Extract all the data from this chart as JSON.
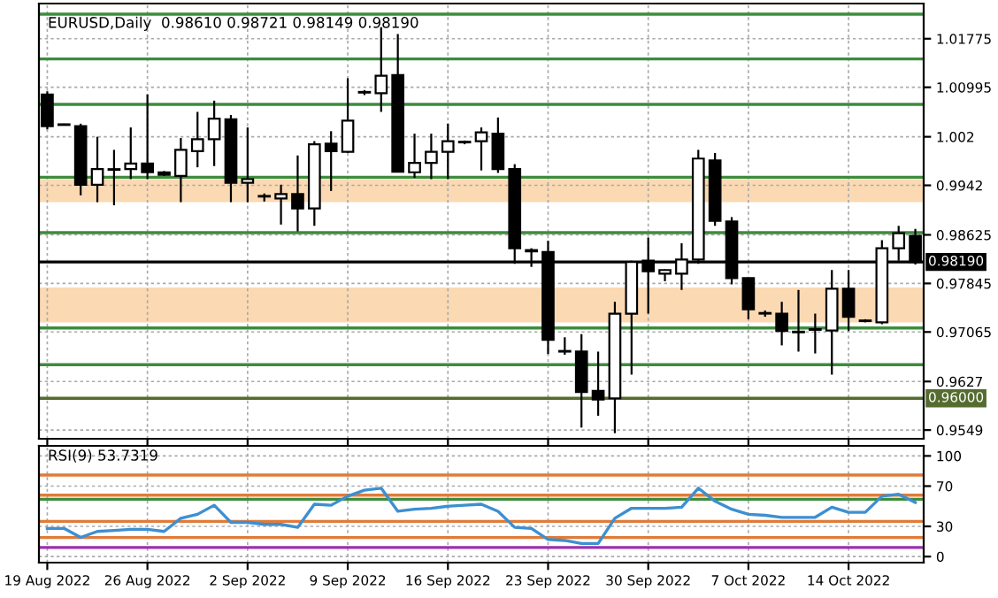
{
  "chart_data": [
    {
      "type": "candlestick",
      "title": "EURUSD,Daily  0.98610 0.98721 0.98149 0.98190",
      "categories": [
        null,
        null,
        null,
        null,
        null,
        null,
        null,
        null,
        null,
        null,
        null,
        null,
        null,
        null,
        null,
        null,
        null,
        null,
        null,
        null,
        null,
        null,
        null,
        null,
        null,
        null,
        null,
        null,
        null,
        null,
        null,
        null,
        null,
        null,
        null,
        null,
        null,
        null,
        null,
        null,
        null,
        null,
        null,
        null,
        null,
        null,
        null,
        null,
        null,
        null,
        null,
        null,
        null
      ],
      "color": "#000000",
      "ohlc": [
        [
          1.0088,
          1.0093,
          1.0032,
          1.0037
        ],
        [
          1.004,
          1.0041,
          1.0038,
          1.0039
        ],
        [
          1.0037,
          1.0041,
          0.9926,
          0.9943
        ],
        [
          0.9943,
          1.002,
          0.9915,
          0.9968
        ],
        [
          0.9968,
          0.9999,
          0.991,
          0.9967
        ],
        [
          0.9968,
          1.0035,
          0.9952,
          0.9977
        ],
        [
          0.9977,
          1.0088,
          0.9952,
          0.9963
        ],
        [
          0.9963,
          0.9965,
          0.9957,
          0.9959
        ],
        [
          0.9957,
          1.0018,
          0.9915,
          0.9999
        ],
        [
          0.9997,
          1.006,
          0.9971,
          1.0016
        ],
        [
          1.0016,
          1.0078,
          0.9973,
          1.0049
        ],
        [
          1.0048,
          1.0055,
          0.9915,
          0.9946
        ],
        [
          0.9946,
          1.0035,
          0.9915,
          0.9952
        ],
        [
          0.9925,
          0.9929,
          0.9916,
          0.9924
        ],
        [
          0.9921,
          0.9943,
          0.9879,
          0.9928
        ],
        [
          0.9928,
          0.999,
          0.9868,
          0.9905
        ],
        [
          0.9905,
          1.0013,
          0.9877,
          1.0008
        ],
        [
          1.0009,
          1.0029,
          0.9933,
          0.9997
        ],
        [
          0.9996,
          1.0114,
          0.9994,
          1.0046
        ],
        [
          1.0091,
          1.0095,
          1.0087,
          1.0092
        ],
        [
          1.009,
          1.0196,
          1.006,
          1.0118
        ],
        [
          1.0119,
          1.0185,
          0.9963,
          0.9964
        ],
        [
          0.9963,
          1.0025,
          0.9954,
          0.9978
        ],
        [
          0.9978,
          1.0025,
          0.9952,
          0.9996
        ],
        [
          0.9996,
          1.0041,
          0.9952,
          1.0013
        ],
        [
          1.0012,
          1.0014,
          1.0008,
          1.0011
        ],
        [
          1.0013,
          1.0035,
          0.9966,
          1.0027
        ],
        [
          1.0025,
          1.0051,
          0.9962,
          0.9968
        ],
        [
          0.9968,
          0.9976,
          0.9816,
          0.9841
        ],
        [
          0.9838,
          0.9841,
          0.9811,
          0.9836
        ],
        [
          0.9835,
          0.9853,
          0.9671,
          0.9694
        ],
        [
          0.9676,
          0.9698,
          0.967,
          0.9675
        ],
        [
          0.9675,
          0.9703,
          0.9553,
          0.961
        ],
        [
          0.9612,
          0.9675,
          0.9572,
          0.9598
        ],
        [
          0.96,
          0.9755,
          0.9544,
          0.9736
        ],
        [
          0.9736,
          0.9821,
          0.9638,
          0.9819
        ],
        [
          0.9821,
          0.9858,
          0.9736,
          0.9804
        ],
        [
          0.98,
          0.9807,
          0.9788,
          0.9806
        ],
        [
          0.98,
          0.9849,
          0.9774,
          0.9823
        ],
        [
          0.9823,
          0.9999,
          0.9816,
          0.9985
        ],
        [
          0.9982,
          0.9994,
          0.9877,
          0.9885
        ],
        [
          0.9884,
          0.9891,
          0.9783,
          0.9793
        ],
        [
          0.9793,
          0.9793,
          0.9727,
          0.9743
        ],
        [
          0.9736,
          0.9741,
          0.9731,
          0.9737
        ],
        [
          0.9736,
          0.9755,
          0.9685,
          0.9708
        ],
        [
          0.9707,
          0.9774,
          0.9675,
          0.9706
        ],
        [
          0.971,
          0.9736,
          0.9672,
          0.9711
        ],
        [
          0.9709,
          0.9806,
          0.9638,
          0.9776
        ],
        [
          0.9776,
          0.9806,
          0.9708,
          0.9731
        ],
        [
          0.9725,
          0.9727,
          0.9722,
          0.9724
        ],
        [
          0.9722,
          0.9854,
          0.9719,
          0.9841
        ],
        [
          0.9841,
          0.9877,
          0.9821,
          0.9865
        ],
        [
          0.9861,
          0.98721,
          0.98149,
          0.9819
        ]
      ],
      "ylim": [
        0.9535,
        1.0234
      ],
      "yticks": [
        0.9549,
        0.9627,
        0.97065,
        0.97845,
        0.98625,
        0.9942,
        1.002,
        1.00995,
        1.01775
      ],
      "ref_lines": [
        {
          "axis": "y",
          "value": 1.0217,
          "color": "#3c8c3c"
        },
        {
          "axis": "y",
          "value": 1.0145,
          "color": "#3c8c3c"
        },
        {
          "axis": "y",
          "value": 1.0072,
          "color": "#3c8c3c"
        },
        {
          "axis": "y",
          "value": 0.9955,
          "color": "#3c8c3c"
        },
        {
          "axis": "y",
          "value": 0.9866,
          "color": "#3c8c3c"
        },
        {
          "axis": "y",
          "value": 0.9713,
          "color": "#3c8c3c"
        },
        {
          "axis": "y",
          "value": 0.9654,
          "color": "#3c8c3c"
        },
        {
          "axis": "y",
          "value": 0.9819,
          "label": "0.98190",
          "color": "#000000"
        },
        {
          "axis": "y",
          "value": 0.96,
          "label": "0.96000",
          "color": "#556b2f"
        }
      ],
      "bands": [
        {
          "axis": "y",
          "from": 0.9915,
          "to": 0.9952,
          "color": "#fbd9b3"
        },
        {
          "axis": "y",
          "from": 0.9722,
          "to": 0.9778,
          "color": "#fbd9b3"
        }
      ],
      "grid": true,
      "tick_labels": "y"
    },
    {
      "type": "line",
      "title": "RSI(9) 53.7319",
      "categories": [
        "19 Aug 2022",
        null,
        null,
        null,
        null,
        null,
        "26 Aug 2022",
        null,
        null,
        null,
        null,
        null,
        "2 Sep 2022",
        null,
        null,
        null,
        null,
        null,
        "9 Sep 2022",
        null,
        null,
        null,
        null,
        null,
        "16 Sep 2022",
        null,
        null,
        null,
        null,
        null,
        "23 Sep 2022",
        null,
        null,
        null,
        null,
        null,
        "30 Sep 2022",
        null,
        null,
        null,
        null,
        null,
        "7 Oct 2022",
        null,
        null,
        null,
        null,
        null,
        "14 Oct 2022",
        null,
        null,
        null,
        null
      ],
      "series": [
        {
          "color": "#3d8fd1",
          "values": [
            28,
            28,
            19,
            25,
            26,
            27,
            27,
            25,
            38,
            42,
            51,
            34,
            34,
            32,
            32,
            29,
            52,
            51,
            60,
            66,
            68,
            45,
            47,
            48,
            50,
            51,
            52,
            45,
            29,
            28,
            17,
            16,
            13,
            13,
            38,
            48,
            48,
            48,
            49,
            68,
            55,
            47,
            42,
            41,
            39,
            39,
            39,
            49,
            44,
            44,
            60,
            62,
            53.7
          ]
        }
      ],
      "ylim": [
        -6,
        110
      ],
      "yticks": [
        0,
        30,
        70,
        100
      ],
      "ref_lines": [
        {
          "axis": "y",
          "value": 81,
          "color": "#e07b39"
        },
        {
          "axis": "y",
          "value": 61,
          "color": "#e07b39"
        },
        {
          "axis": "y",
          "value": 57,
          "color": "#3c8c3c"
        },
        {
          "axis": "y",
          "value": 35,
          "color": "#e07b39"
        },
        {
          "axis": "y",
          "value": 19,
          "color": "#e07b39"
        },
        {
          "axis": "y",
          "value": 9,
          "color": "#9b30b0"
        }
      ],
      "grid": true
    }
  ]
}
